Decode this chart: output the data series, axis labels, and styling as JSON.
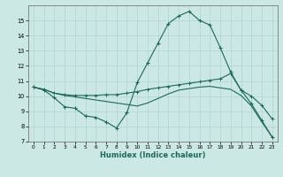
{
  "xlabel": "Humidex (Indice chaleur)",
  "x_ticks": [
    0,
    1,
    2,
    3,
    4,
    5,
    6,
    7,
    8,
    9,
    10,
    11,
    12,
    13,
    14,
    15,
    16,
    17,
    18,
    19,
    20,
    21,
    22,
    23
  ],
  "ylim": [
    7,
    16
  ],
  "y_ticks": [
    7,
    8,
    9,
    10,
    11,
    12,
    13,
    14,
    15
  ],
  "bg_color": "#cce8e4",
  "grid_color": "#b0d4d0",
  "line_color": "#1a6b5a",
  "series": {
    "curve1_x": [
      0,
      1,
      2,
      3,
      4,
      5,
      6,
      7,
      8,
      9,
      10,
      11,
      12,
      13,
      14,
      15,
      16,
      17,
      18,
      19,
      20,
      21,
      22,
      23
    ],
    "curve1_y": [
      10.6,
      10.4,
      9.9,
      9.3,
      9.2,
      8.7,
      8.6,
      8.3,
      7.9,
      8.9,
      10.9,
      12.2,
      13.5,
      14.8,
      15.3,
      15.6,
      15.0,
      14.7,
      13.2,
      11.6,
      10.4,
      9.5,
      8.4,
      7.3
    ],
    "curve2_x": [
      0,
      1,
      2,
      3,
      4,
      5,
      6,
      7,
      8,
      9,
      10,
      11,
      12,
      13,
      14,
      15,
      16,
      17,
      18,
      19,
      20,
      21,
      22,
      23
    ],
    "curve2_y": [
      10.6,
      10.45,
      10.2,
      10.1,
      10.05,
      10.05,
      10.05,
      10.1,
      10.1,
      10.2,
      10.3,
      10.45,
      10.55,
      10.65,
      10.75,
      10.85,
      10.95,
      11.05,
      11.15,
      11.5,
      10.4,
      10.0,
      9.4,
      8.5
    ],
    "curve3_x": [
      0,
      1,
      2,
      3,
      4,
      5,
      6,
      7,
      8,
      9,
      10,
      11,
      12,
      13,
      14,
      15,
      16,
      17,
      18,
      19,
      20,
      21,
      22,
      23
    ],
    "curve3_y": [
      10.6,
      10.45,
      10.2,
      10.05,
      9.95,
      9.85,
      9.75,
      9.65,
      9.55,
      9.45,
      9.35,
      9.55,
      9.85,
      10.15,
      10.4,
      10.5,
      10.6,
      10.65,
      10.55,
      10.45,
      10.05,
      9.35,
      8.3,
      7.3
    ]
  }
}
